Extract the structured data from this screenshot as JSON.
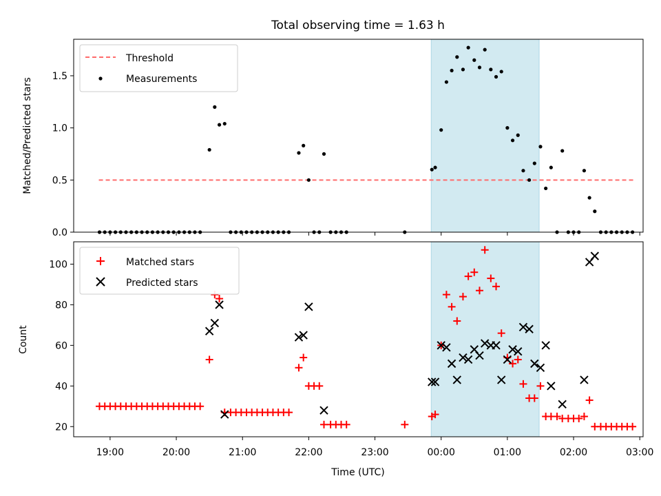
{
  "chart_data": [
    {
      "type": "scatter",
      "title": "Total observing time = 1.63 h",
      "xlabel": "",
      "ylabel": "Matched/Predicted stars",
      "xlim": [
        18.45,
        27.05
      ],
      "ylim": [
        0,
        1.85
      ],
      "yticks": [
        0.0,
        0.5,
        1.0,
        1.5
      ],
      "ytick_labels": [
        "0.0",
        "0.5",
        "1.0",
        "1.5"
      ],
      "shaded_span": {
        "x": [
          23.85,
          25.48
        ],
        "color": "#add8e6"
      },
      "legend": {
        "position": "upper-left",
        "entries": [
          "Threshold",
          "Measurements"
        ]
      },
      "series": [
        {
          "name": "Threshold",
          "kind": "dashed-line",
          "color": "#ff6b6b",
          "x": [
            18.83,
            26.92
          ],
          "y": [
            0.5,
            0.5
          ]
        },
        {
          "name": "Measurements",
          "kind": "dots",
          "color": "#000000",
          "points": [
            [
              18.84,
              0
            ],
            [
              18.92,
              0
            ],
            [
              19.0,
              0
            ],
            [
              19.08,
              0
            ],
            [
              19.16,
              0
            ],
            [
              19.24,
              0
            ],
            [
              19.32,
              0
            ],
            [
              19.4,
              0
            ],
            [
              19.48,
              0
            ],
            [
              19.56,
              0
            ],
            [
              19.64,
              0
            ],
            [
              19.72,
              0
            ],
            [
              19.8,
              0
            ],
            [
              19.88,
              0
            ],
            [
              19.96,
              0
            ],
            [
              20.04,
              0
            ],
            [
              20.12,
              0
            ],
            [
              20.2,
              0
            ],
            [
              20.28,
              0
            ],
            [
              20.36,
              0
            ],
            [
              20.5,
              0.79
            ],
            [
              20.58,
              1.2
            ],
            [
              20.65,
              1.03
            ],
            [
              20.73,
              1.04
            ],
            [
              20.82,
              0
            ],
            [
              20.9,
              0
            ],
            [
              20.98,
              0
            ],
            [
              21.06,
              0
            ],
            [
              21.14,
              0
            ],
            [
              21.22,
              0
            ],
            [
              21.3,
              0
            ],
            [
              21.38,
              0
            ],
            [
              21.46,
              0
            ],
            [
              21.54,
              0
            ],
            [
              21.62,
              0
            ],
            [
              21.7,
              0
            ],
            [
              21.85,
              0.76
            ],
            [
              21.92,
              0.83
            ],
            [
              22.0,
              0.5
            ],
            [
              22.08,
              0
            ],
            [
              22.16,
              0
            ],
            [
              22.23,
              0.75
            ],
            [
              22.33,
              0
            ],
            [
              22.41,
              0
            ],
            [
              22.49,
              0
            ],
            [
              22.57,
              0
            ],
            [
              23.45,
              0
            ],
            [
              23.86,
              0.6
            ],
            [
              23.91,
              0.62
            ],
            [
              24.0,
              0.98
            ],
            [
              24.08,
              1.44
            ],
            [
              24.16,
              1.55
            ],
            [
              24.24,
              1.68
            ],
            [
              24.33,
              1.56
            ],
            [
              24.41,
              1.77
            ],
            [
              24.5,
              1.65
            ],
            [
              24.58,
              1.58
            ],
            [
              24.66,
              1.75
            ],
            [
              24.75,
              1.56
            ],
            [
              24.83,
              1.49
            ],
            [
              24.91,
              1.54
            ],
            [
              25.0,
              1.0
            ],
            [
              25.08,
              0.88
            ],
            [
              25.16,
              0.93
            ],
            [
              25.24,
              0.59
            ],
            [
              25.33,
              0.5
            ],
            [
              25.41,
              0.66
            ],
            [
              25.5,
              0.82
            ],
            [
              25.58,
              0.42
            ],
            [
              25.66,
              0.62
            ],
            [
              25.75,
              0
            ],
            [
              25.83,
              0.78
            ],
            [
              25.92,
              0
            ],
            [
              26.0,
              0
            ],
            [
              26.08,
              0
            ],
            [
              26.16,
              0.59
            ],
            [
              26.24,
              0.33
            ],
            [
              26.32,
              0.2
            ],
            [
              26.41,
              0
            ],
            [
              26.49,
              0
            ],
            [
              26.57,
              0
            ],
            [
              26.65,
              0
            ],
            [
              26.73,
              0
            ],
            [
              26.81,
              0
            ],
            [
              26.89,
              0
            ]
          ]
        }
      ]
    },
    {
      "type": "scatter",
      "title": "",
      "xlabel": "Time (UTC)",
      "ylabel": "Count",
      "xlim": [
        18.45,
        27.05
      ],
      "ylim": [
        15,
        111
      ],
      "yticks": [
        20,
        40,
        60,
        80,
        100
      ],
      "ytick_labels": [
        "20",
        "40",
        "60",
        "80",
        "100"
      ],
      "xticks": [
        19,
        20,
        21,
        22,
        23,
        24,
        25,
        26,
        27
      ],
      "xtick_labels": [
        "19:00",
        "20:00",
        "21:00",
        "22:00",
        "23:00",
        "00:00",
        "01:00",
        "02:00",
        "03:00"
      ],
      "shaded_span": {
        "x": [
          23.85,
          25.48
        ],
        "color": "#add8e6"
      },
      "legend": {
        "position": "upper-left",
        "entries": [
          "Matched stars",
          "Predicted stars"
        ]
      },
      "series": [
        {
          "name": "Matched stars",
          "marker": "+",
          "color": "#ff0000",
          "points": [
            [
              18.84,
              30
            ],
            [
              18.92,
              30
            ],
            [
              19.0,
              30
            ],
            [
              19.08,
              30
            ],
            [
              19.16,
              30
            ],
            [
              19.24,
              30
            ],
            [
              19.32,
              30
            ],
            [
              19.4,
              30
            ],
            [
              19.48,
              30
            ],
            [
              19.56,
              30
            ],
            [
              19.64,
              30
            ],
            [
              19.72,
              30
            ],
            [
              19.8,
              30
            ],
            [
              19.88,
              30
            ],
            [
              19.96,
              30
            ],
            [
              20.04,
              30
            ],
            [
              20.12,
              30
            ],
            [
              20.2,
              30
            ],
            [
              20.28,
              30
            ],
            [
              20.36,
              30
            ],
            [
              20.5,
              53
            ],
            [
              20.58,
              85
            ],
            [
              20.65,
              83
            ],
            [
              20.73,
              27
            ],
            [
              20.82,
              27
            ],
            [
              20.9,
              27
            ],
            [
              20.98,
              27
            ],
            [
              21.06,
              27
            ],
            [
              21.14,
              27
            ],
            [
              21.22,
              27
            ],
            [
              21.3,
              27
            ],
            [
              21.38,
              27
            ],
            [
              21.46,
              27
            ],
            [
              21.54,
              27
            ],
            [
              21.62,
              27
            ],
            [
              21.7,
              27
            ],
            [
              21.85,
              49
            ],
            [
              21.92,
              54
            ],
            [
              22.0,
              40
            ],
            [
              22.08,
              40
            ],
            [
              22.16,
              40
            ],
            [
              22.23,
              21
            ],
            [
              22.33,
              21
            ],
            [
              22.41,
              21
            ],
            [
              22.49,
              21
            ],
            [
              22.57,
              21
            ],
            [
              23.45,
              21
            ],
            [
              23.86,
              25
            ],
            [
              23.91,
              26
            ],
            [
              24.0,
              60
            ],
            [
              24.08,
              85
            ],
            [
              24.16,
              79
            ],
            [
              24.24,
              72
            ],
            [
              24.33,
              84
            ],
            [
              24.41,
              94
            ],
            [
              24.5,
              96
            ],
            [
              24.58,
              87
            ],
            [
              24.66,
              107
            ],
            [
              24.75,
              93
            ],
            [
              24.83,
              89
            ],
            [
              24.91,
              66
            ],
            [
              25.0,
              54
            ],
            [
              25.08,
              51
            ],
            [
              25.16,
              53
            ],
            [
              25.24,
              41
            ],
            [
              25.33,
              34
            ],
            [
              25.41,
              34
            ],
            [
              25.5,
              40
            ],
            [
              25.58,
              25
            ],
            [
              25.66,
              25
            ],
            [
              25.75,
              25
            ],
            [
              25.83,
              24
            ],
            [
              25.92,
              24
            ],
            [
              26.0,
              24
            ],
            [
              26.08,
              24
            ],
            [
              26.16,
              25
            ],
            [
              26.24,
              33
            ],
            [
              26.32,
              20
            ],
            [
              26.41,
              20
            ],
            [
              26.49,
              20
            ],
            [
              26.57,
              20
            ],
            [
              26.65,
              20
            ],
            [
              26.73,
              20
            ],
            [
              26.81,
              20
            ],
            [
              26.89,
              20
            ]
          ]
        },
        {
          "name": "Predicted stars",
          "marker": "x",
          "color": "#000000",
          "points": [
            [
              20.5,
              67
            ],
            [
              20.58,
              71
            ],
            [
              20.65,
              80
            ],
            [
              20.73,
              26
            ],
            [
              21.85,
              64
            ],
            [
              21.92,
              65
            ],
            [
              22.0,
              79
            ],
            [
              22.23,
              28
            ],
            [
              23.86,
              42
            ],
            [
              23.91,
              42
            ],
            [
              24.0,
              60
            ],
            [
              24.08,
              59
            ],
            [
              24.16,
              51
            ],
            [
              24.24,
              43
            ],
            [
              24.33,
              54
            ],
            [
              24.41,
              53
            ],
            [
              24.5,
              58
            ],
            [
              24.58,
              55
            ],
            [
              24.66,
              61
            ],
            [
              24.75,
              60
            ],
            [
              24.83,
              60
            ],
            [
              24.91,
              43
            ],
            [
              25.0,
              53
            ],
            [
              25.08,
              58
            ],
            [
              25.16,
              57
            ],
            [
              25.24,
              69
            ],
            [
              25.33,
              68
            ],
            [
              25.41,
              51
            ],
            [
              25.5,
              49
            ],
            [
              25.58,
              60
            ],
            [
              25.66,
              40
            ],
            [
              25.83,
              31
            ],
            [
              26.16,
              43
            ],
            [
              26.24,
              101
            ],
            [
              26.32,
              104
            ]
          ]
        }
      ]
    }
  ]
}
